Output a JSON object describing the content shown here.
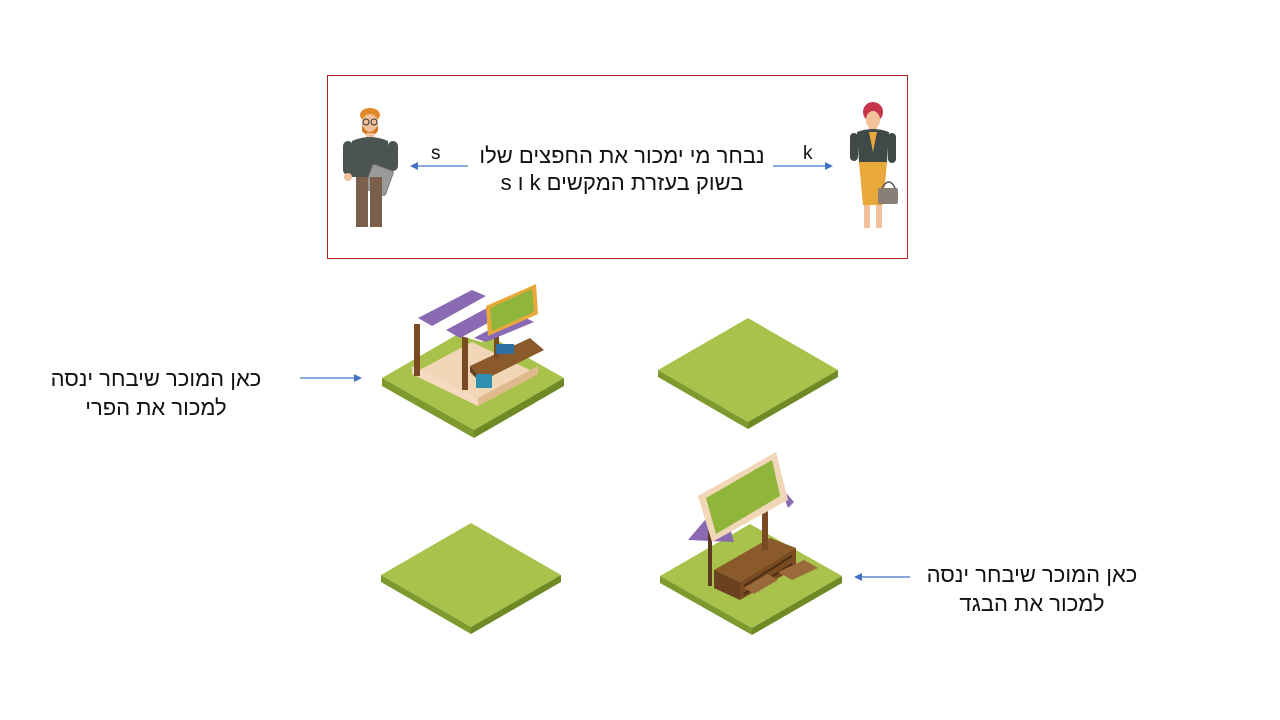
{
  "instruction": {
    "line1": "נבחר מי ימכור את החפצים שלו",
    "line2": "בשוק בעזרת המקשים k ו s",
    "left_player_key": "s",
    "right_player_key": "k"
  },
  "labels": {
    "fruit_stall_line1": "כאן המוכר שיבחר ינסה",
    "fruit_stall_line2": "למכור את הפרי",
    "clothes_stall_line1": "כאן המוכר שיבחר ינסה",
    "clothes_stall_line2": "למכור את הבגד"
  },
  "colors": {
    "box_border": "#b22222",
    "arrow": "#4472c4",
    "grass_top": "#a9c24c",
    "grass_side": "#7e9a2e",
    "awning_purple": "#8a6bb3",
    "wood": "#8b5a2b"
  }
}
